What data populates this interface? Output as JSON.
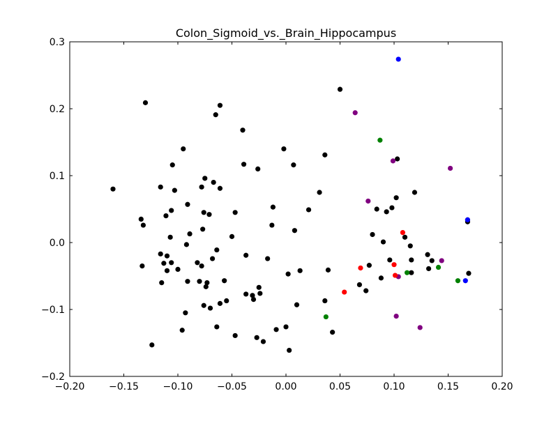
{
  "chart_data": {
    "type": "scatter",
    "title": "Colon_Sigmoid_vs._Brain_Hippocampus",
    "xlabel": "",
    "ylabel": "",
    "xlim": [
      -0.2,
      0.2
    ],
    "ylim": [
      -0.2,
      0.3
    ],
    "xticks": [
      -0.2,
      -0.15,
      -0.1,
      -0.05,
      0.0,
      0.05,
      0.1,
      0.15,
      0.2
    ],
    "xtick_labels": [
      "−0.20",
      "−0.15",
      "−0.10",
      "−0.05",
      "0.00",
      "0.05",
      "0.10",
      "0.15",
      "0.20"
    ],
    "yticks": [
      -0.2,
      -0.1,
      0.0,
      0.1,
      0.2,
      0.3
    ],
    "ytick_labels": [
      "−0.2",
      "−0.1",
      "0.0",
      "0.1",
      "0.2",
      "0.3"
    ],
    "grid": false,
    "legend": "none",
    "series": [
      {
        "color": "#000000",
        "points": [
          [
            -0.16,
            0.08
          ],
          [
            -0.13,
            0.209
          ],
          [
            -0.134,
            0.035
          ],
          [
            -0.132,
            0.026
          ],
          [
            -0.133,
            -0.035
          ],
          [
            -0.124,
            -0.153
          ],
          [
            -0.116,
            0.083
          ],
          [
            -0.116,
            -0.017
          ],
          [
            -0.115,
            -0.06
          ],
          [
            -0.113,
            -0.031
          ],
          [
            -0.111,
            0.04
          ],
          [
            -0.11,
            -0.02
          ],
          [
            -0.11,
            -0.042
          ],
          [
            -0.107,
            0.008
          ],
          [
            -0.106,
            -0.03
          ],
          [
            -0.106,
            0.048
          ],
          [
            -0.105,
            0.116
          ],
          [
            -0.103,
            0.078
          ],
          [
            -0.1,
            -0.04
          ],
          [
            -0.096,
            -0.131
          ],
          [
            -0.095,
            0.14
          ],
          [
            -0.093,
            -0.105
          ],
          [
            -0.092,
            -0.003
          ],
          [
            -0.091,
            0.057
          ],
          [
            -0.091,
            -0.058
          ],
          [
            -0.089,
            0.013
          ],
          [
            -0.082,
            -0.03
          ],
          [
            -0.08,
            -0.058
          ],
          [
            -0.078,
            0.083
          ],
          [
            -0.078,
            -0.035
          ],
          [
            -0.077,
            0.02
          ],
          [
            -0.076,
            0.045
          ],
          [
            -0.076,
            -0.094
          ],
          [
            -0.075,
            0.096
          ],
          [
            -0.074,
            -0.066
          ],
          [
            -0.073,
            -0.06
          ],
          [
            -0.071,
            0.042
          ],
          [
            -0.07,
            -0.098
          ],
          [
            -0.068,
            -0.024
          ],
          [
            -0.067,
            0.09
          ],
          [
            -0.065,
            0.191
          ],
          [
            -0.064,
            -0.126
          ],
          [
            -0.064,
            -0.011
          ],
          [
            -0.061,
            0.205
          ],
          [
            -0.061,
            0.081
          ],
          [
            -0.061,
            -0.091
          ],
          [
            -0.057,
            -0.057
          ],
          [
            -0.055,
            -0.087
          ],
          [
            -0.05,
            0.009
          ],
          [
            -0.047,
            0.045
          ],
          [
            -0.047,
            -0.139
          ],
          [
            -0.04,
            0.168
          ],
          [
            -0.039,
            0.117
          ],
          [
            -0.037,
            -0.019
          ],
          [
            -0.037,
            -0.077
          ],
          [
            -0.031,
            -0.079
          ],
          [
            -0.03,
            -0.085
          ],
          [
            -0.027,
            -0.142
          ],
          [
            -0.026,
            0.11
          ],
          [
            -0.025,
            -0.067
          ],
          [
            -0.024,
            -0.076
          ],
          [
            -0.021,
            -0.148
          ],
          [
            -0.017,
            -0.024
          ],
          [
            -0.013,
            0.026
          ],
          [
            -0.012,
            0.053
          ],
          [
            -0.009,
            -0.13
          ],
          [
            -0.002,
            0.14
          ],
          [
            0.0,
            -0.126
          ],
          [
            0.002,
            -0.047
          ],
          [
            0.003,
            -0.161
          ],
          [
            0.007,
            0.116
          ],
          [
            0.008,
            0.018
          ],
          [
            0.01,
            -0.093
          ],
          [
            0.013,
            -0.042
          ],
          [
            0.021,
            0.049
          ],
          [
            0.031,
            0.075
          ],
          [
            0.036,
            0.131
          ],
          [
            0.036,
            -0.087
          ],
          [
            0.039,
            -0.041
          ],
          [
            0.043,
            -0.134
          ],
          [
            0.05,
            0.229
          ],
          [
            0.068,
            -0.063
          ],
          [
            0.074,
            -0.072
          ],
          [
            0.077,
            -0.034
          ],
          [
            0.08,
            0.012
          ],
          [
            0.084,
            0.05
          ],
          [
            0.088,
            -0.053
          ],
          [
            0.09,
            0.001
          ],
          [
            0.093,
            0.046
          ],
          [
            0.096,
            -0.026
          ],
          [
            0.098,
            0.052
          ],
          [
            0.102,
            0.067
          ],
          [
            0.103,
            0.125
          ],
          [
            0.11,
            0.008
          ],
          [
            0.115,
            -0.005
          ],
          [
            0.116,
            -0.026
          ],
          [
            0.116,
            -0.045
          ],
          [
            0.119,
            0.075
          ],
          [
            0.131,
            -0.018
          ],
          [
            0.132,
            -0.039
          ],
          [
            0.135,
            -0.027
          ],
          [
            0.168,
            0.034
          ],
          [
            0.168,
            0.031
          ],
          [
            0.169,
            -0.046
          ]
        ]
      },
      {
        "color": "#0000ff",
        "points": [
          [
            0.104,
            0.274
          ],
          [
            0.168,
            0.034
          ],
          [
            0.166,
            -0.057
          ]
        ]
      },
      {
        "color": "#800080",
        "points": [
          [
            0.064,
            0.194
          ],
          [
            0.076,
            0.062
          ],
          [
            0.099,
            0.122
          ],
          [
            0.152,
            0.111
          ],
          [
            0.144,
            -0.027
          ],
          [
            0.104,
            -0.051
          ],
          [
            0.102,
            -0.11
          ],
          [
            0.124,
            -0.127
          ]
        ]
      },
      {
        "color": "#008000",
        "points": [
          [
            0.087,
            0.153
          ],
          [
            0.112,
            -0.045
          ],
          [
            0.141,
            -0.037
          ],
          [
            0.159,
            -0.057
          ],
          [
            0.037,
            -0.111
          ]
        ]
      },
      {
        "color": "#ff0000",
        "points": [
          [
            0.108,
            0.015
          ],
          [
            0.1,
            -0.033
          ],
          [
            0.101,
            -0.049
          ],
          [
            0.069,
            -0.038
          ],
          [
            0.054,
            -0.074
          ]
        ]
      }
    ]
  }
}
